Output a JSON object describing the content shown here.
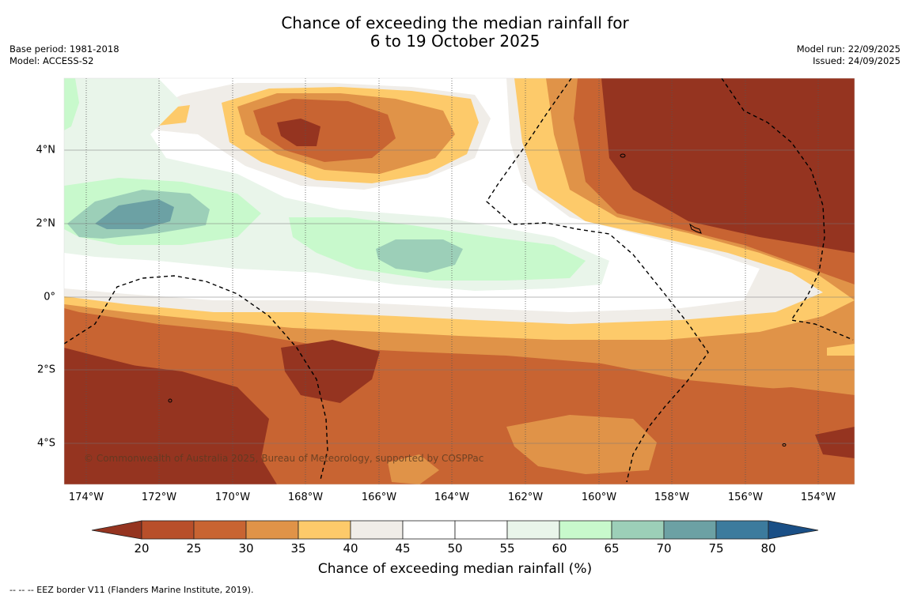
{
  "title": {
    "line1": "Chance of exceeding the median rainfall for",
    "line2": "6 to 19 October 2025"
  },
  "meta_left": {
    "base_period": "Base period: 1981-2018",
    "model": "Model: ACCESS-S2"
  },
  "meta_right": {
    "model_run": "Model run: 22/09/2025",
    "issued": "Issued: 24/09/2025"
  },
  "map": {
    "lon_labels": [
      "174°W",
      "172°W",
      "170°W",
      "168°W",
      "166°W",
      "164°W",
      "162°W",
      "160°W",
      "158°W",
      "156°W",
      "154°W"
    ],
    "lat_labels": [
      "4°N",
      "2°N",
      "0°",
      "2°S",
      "4°S"
    ],
    "copyright": "© Commonwealth of Australia 2025, Bureau of Meteorology, supported by COSPPac"
  },
  "colorbar": {
    "ticks": [
      "20",
      "25",
      "30",
      "35",
      "40",
      "45",
      "50",
      "55",
      "60",
      "65",
      "70",
      "75",
      "80"
    ],
    "colors": [
      "#953420",
      "#b84f2a",
      "#c86432",
      "#e09348",
      "#fdca6a",
      "#f0ede8",
      "#ffffff",
      "#ffffff",
      "#e9f5ea",
      "#c8f9cc",
      "#9ccfb8",
      "#6ca1a4",
      "#3c7b9d",
      "#1a4f86"
    ],
    "title": "Chance of exceeding median rainfall (%)"
  },
  "footnote": "--  --  -- EEZ border V11 (Flanders Marine Institute, 2019)."
}
